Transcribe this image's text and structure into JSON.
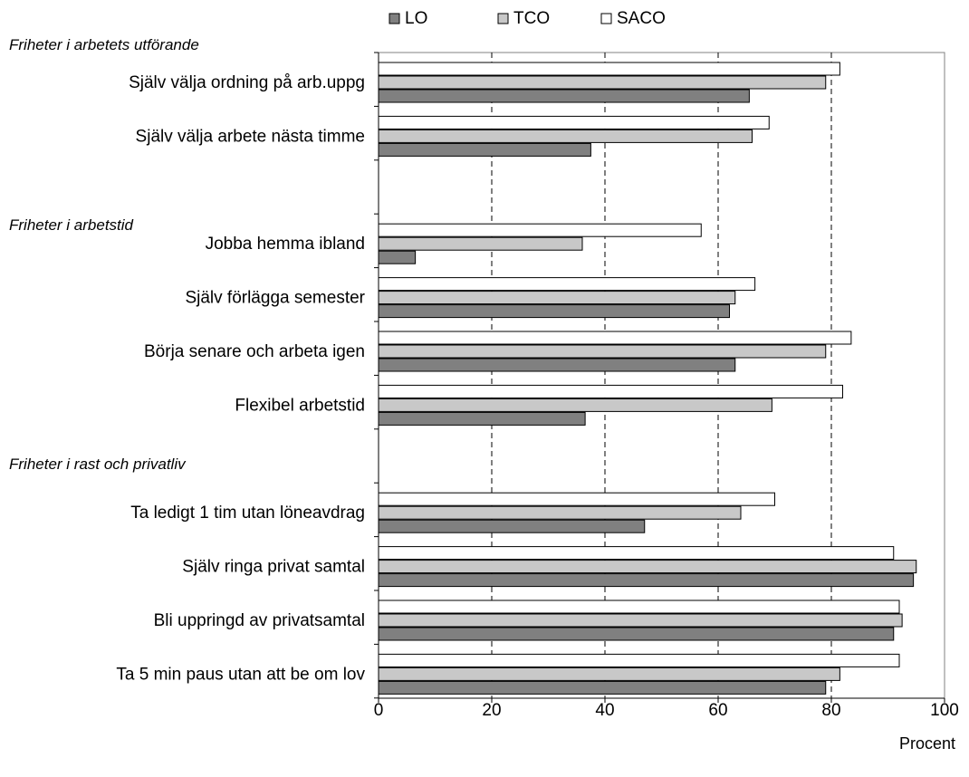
{
  "chart_data": {
    "type": "bar",
    "orientation": "horizontal",
    "x_label": "Procent",
    "xlim": [
      0,
      100
    ],
    "x_ticks": [
      "0",
      "20",
      "40",
      "60",
      "80",
      "100"
    ],
    "grid": "dashed vertical at 20, 40, 60, 80",
    "legend": {
      "position": "top",
      "entries": [
        {
          "name": "LO",
          "color": "#808080"
        },
        {
          "name": "TCO",
          "color": "#c8c8c8"
        },
        {
          "name": "SACO",
          "color": "#ffffff"
        }
      ]
    },
    "groups": [
      {
        "heading": "Friheter i arbetets utförande",
        "categories": [
          {
            "label": "Själv välja ordning på arb.uppg",
            "LO": 65.5,
            "TCO": 79,
            "SACO": 81.5
          },
          {
            "label": "Själv välja arbete nästa timme",
            "LO": 37.5,
            "TCO": 66,
            "SACO": 69
          }
        ]
      },
      {
        "heading": "Friheter i arbetstid",
        "categories": [
          {
            "label": "Jobba hemma ibland",
            "LO": 6.5,
            "TCO": 36,
            "SACO": 57
          },
          {
            "label": "Själv förlägga semester",
            "LO": 62,
            "TCO": 63,
            "SACO": 66.5
          },
          {
            "label": "Börja senare och arbeta igen",
            "LO": 63,
            "TCO": 79,
            "SACO": 83.5
          },
          {
            "label": "Flexibel arbetstid",
            "LO": 36.5,
            "TCO": 69.5,
            "SACO": 82
          }
        ]
      },
      {
        "heading": "Friheter i rast och privatliv",
        "categories": [
          {
            "label": "Ta ledigt 1 tim utan löneavdrag",
            "LO": 47,
            "TCO": 64,
            "SACO": 70
          },
          {
            "label": "Själv ringa privat samtal",
            "LO": 94.5,
            "TCO": 95,
            "SACO": 91
          },
          {
            "label": "Bli uppringd av privatsamtal",
            "LO": 91,
            "TCO": 92.5,
            "SACO": 92
          },
          {
            "label": "Ta 5 min paus utan att be om lov",
            "LO": 79,
            "TCO": 81.5,
            "SACO": 92
          }
        ]
      }
    ]
  }
}
